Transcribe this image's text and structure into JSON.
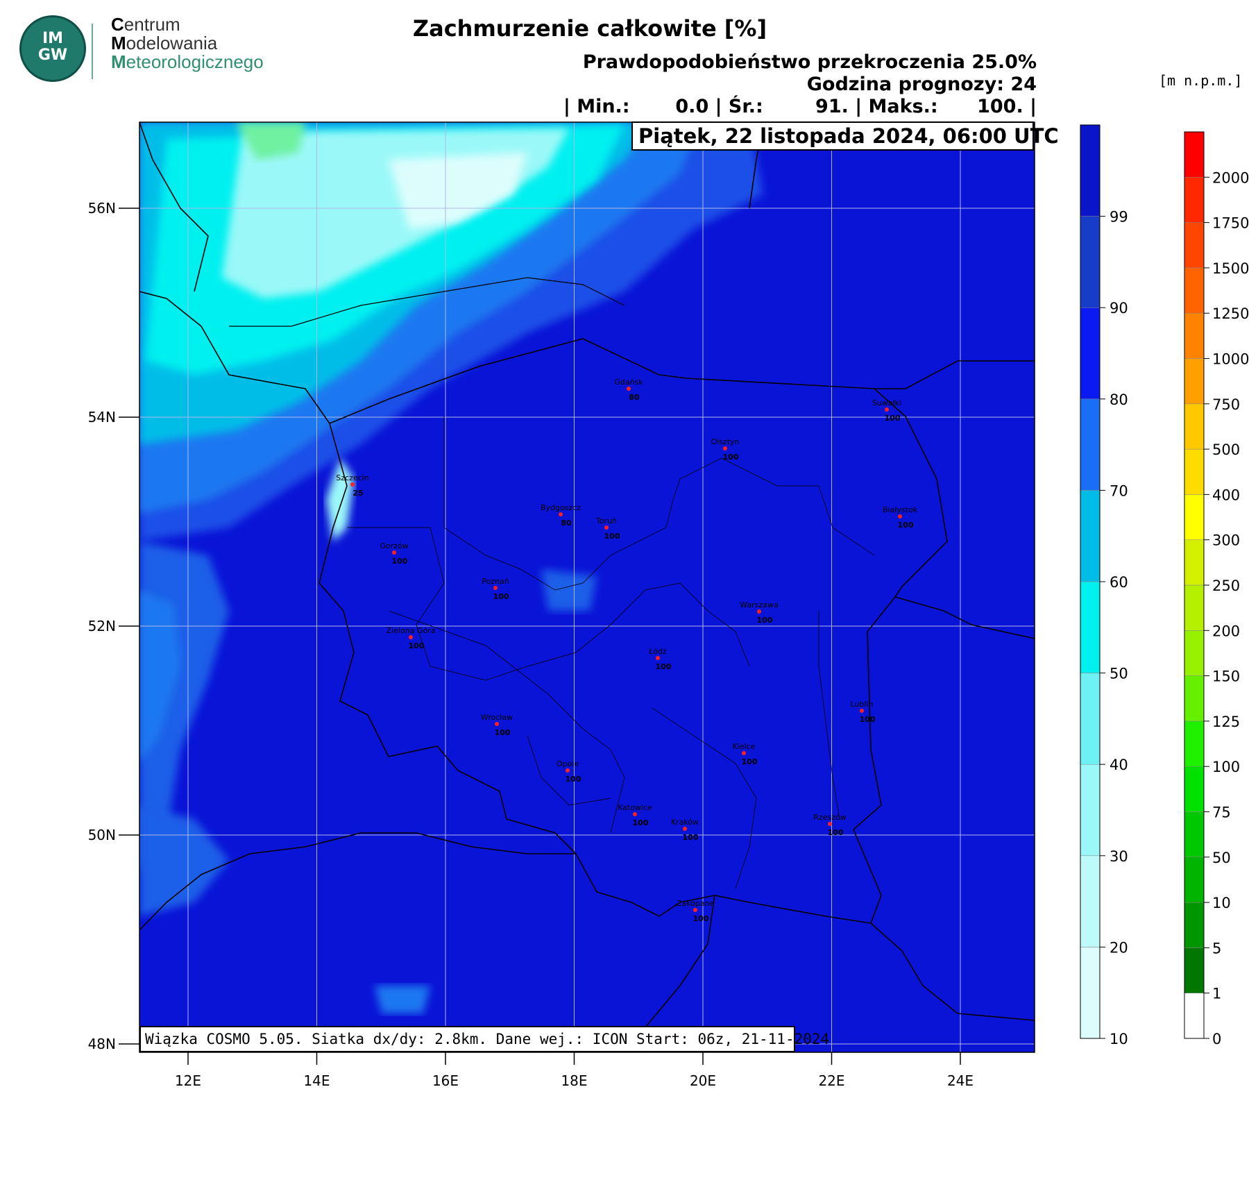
{
  "logo": {
    "abbr": "IM GW",
    "org_line1_first": "C",
    "org_line1_rest": "entrum",
    "org_line2_first": "M",
    "org_line2_rest": "odelowania",
    "org_line3_first": "M",
    "org_line3_rest": "eteorologicznego"
  },
  "header": {
    "title": "Zachmurzenie całkowite [%]",
    "probability": "Prawdopodobieństwo przekroczenia 25.0%",
    "forecast_hour": "Godzina prognozy: 24",
    "stats": "| Min.:       0.0 | Śr.:        91. | Maks.:      100. |"
  },
  "map": {
    "date": "Piątek, 22 listopada 2024, 06:00 UTC",
    "info": "Wiązka COSMO 5.05. Siatka dx/dy: 2.8km. Dane wej.: ICON Start: 06z, 21-11-2024",
    "lat_labels": [
      "56N",
      "54N",
      "52N",
      "50N",
      "48N"
    ],
    "lon_labels": [
      "12E",
      "14E",
      "16E",
      "18E",
      "20E",
      "22E",
      "24E"
    ],
    "background_color": "#0a14d6",
    "cities": [
      {
        "name": "Gdańsk",
        "value": "80"
      },
      {
        "name": "Suwałki",
        "value": "100"
      },
      {
        "name": "Olsztyn",
        "value": "100"
      },
      {
        "name": "Szczecin",
        "value": "25"
      },
      {
        "name": "Bydgoszcz",
        "value": "80"
      },
      {
        "name": "Toruń",
        "value": "100"
      },
      {
        "name": "Białystok",
        "value": "100"
      },
      {
        "name": "Gorzów",
        "value": "100"
      },
      {
        "name": "Poznań",
        "value": "100"
      },
      {
        "name": "Warszawa",
        "value": "100"
      },
      {
        "name": "Zielona Góra",
        "value": "100"
      },
      {
        "name": "Łódź",
        "value": "100"
      },
      {
        "name": "Lublin",
        "value": "100"
      },
      {
        "name": "Wrocław",
        "value": "100"
      },
      {
        "name": "Kielce",
        "value": "100"
      },
      {
        "name": "Opole",
        "value": "100"
      },
      {
        "name": "Katowice",
        "value": "100"
      },
      {
        "name": "Kraków",
        "value": "100"
      },
      {
        "name": "Rzeszów",
        "value": "100"
      },
      {
        "name": "Zakopane",
        "value": "100"
      }
    ]
  },
  "cloud_scale": {
    "labels": [
      "10",
      "20",
      "30",
      "40",
      "50",
      "60",
      "70",
      "80",
      "90",
      "99"
    ],
    "colors": [
      "#ddfdfd",
      "#bdfbfb",
      "#9bf8f8",
      "#6ef1f4",
      "#00f0f0",
      "#00bde8",
      "#1a6ef5",
      "#0a1af0",
      "#163cc8",
      "#0a14c8"
    ]
  },
  "height_scale": {
    "units": "[m  n.p.m.]",
    "labels": [
      "0",
      "1",
      "5",
      "10",
      "50",
      "75",
      "100",
      "125",
      "150",
      "200",
      "250",
      "300",
      "400",
      "500",
      "750",
      "1000",
      "1250",
      "1500",
      "1750",
      "2000"
    ],
    "colors": [
      "#ffffff",
      "#007800",
      "#009600",
      "#00b400",
      "#00c800",
      "#00e100",
      "#1ef000",
      "#64f000",
      "#96f000",
      "#b4f000",
      "#d2f000",
      "#ffff00",
      "#ffdc00",
      "#ffc800",
      "#ffa000",
      "#ff8200",
      "#ff6400",
      "#ff4600",
      "#ff2800",
      "#ff0000"
    ]
  }
}
